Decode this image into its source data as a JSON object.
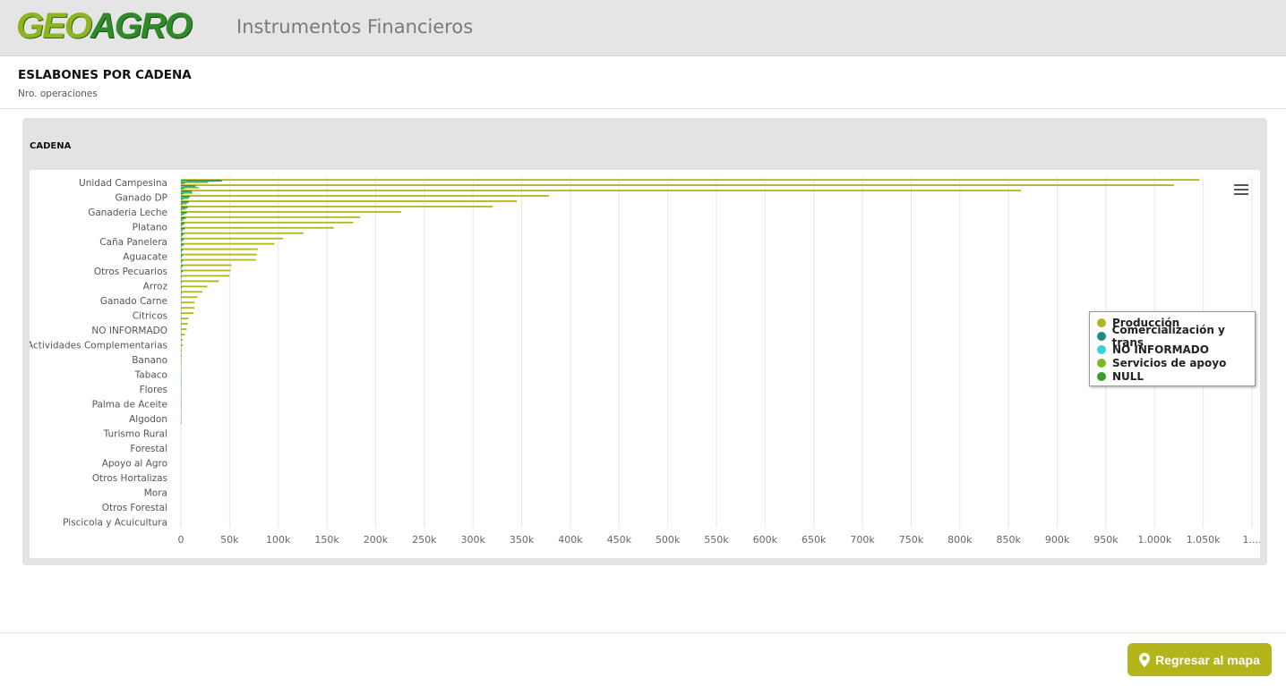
{
  "header": {
    "logo_geo": "GEO",
    "logo_agro": "AGRO",
    "title": "Instrumentos Financieros"
  },
  "page": {
    "heading": "ESLABONES POR CADENA",
    "subheading": "Nro. operaciones"
  },
  "card": {
    "title": "CADENA"
  },
  "footer": {
    "back_button_label": "Regresar al mapa",
    "back_button_icon": "map-pin-icon"
  },
  "chart_data": {
    "type": "bar",
    "orientation": "horizontal",
    "title": "",
    "xlabel": "",
    "ylabel": "",
    "xlim": [
      0,
      1100000
    ],
    "grid": true,
    "legend_position": "right",
    "x_ticks": [
      "0",
      "50k",
      "100k",
      "150k",
      "200k",
      "250k",
      "300k",
      "350k",
      "400k",
      "450k",
      "500k",
      "550k",
      "600k",
      "650k",
      "700k",
      "750k",
      "800k",
      "850k",
      "900k",
      "950k",
      "1.000k",
      "1.050k",
      "1...."
    ],
    "category_labels_shown": [
      "Unidad Campesina",
      "Ganado DP",
      "Ganaderia Leche",
      "Platano",
      "Caña Panelera",
      "Aguacate",
      "Otros Pecuarios",
      "Arroz",
      "Ganado Carne",
      "Citricos",
      "NO INFORMADO",
      "Actividades Complementarias",
      "Banano",
      "Tabaco",
      "Flores",
      "Palma de Aceite",
      "Algodon",
      "Turismo Rural",
      "Forestal",
      "Apoyo al Agro",
      "Otros Hortalizas",
      "Mora",
      "Otros Forestal",
      "Piscicola y Acuicultura"
    ],
    "series": [
      {
        "name": "Producción",
        "color": "#b1b61c",
        "values": [
          1046000,
          1020000,
          863000,
          378000,
          345000,
          320000,
          226000,
          184000,
          177000,
          157000,
          126000,
          105000,
          96000,
          79000,
          78000,
          77000,
          52000,
          51000,
          50000,
          39000,
          27000,
          22000,
          17000,
          14000,
          14000,
          13000,
          8000,
          7000,
          6000,
          4000,
          2000,
          2000,
          1000,
          1000,
          500,
          300,
          200,
          150,
          120,
          100,
          80,
          60,
          50,
          40,
          30,
          20
        ]
      },
      {
        "name": "Comercialización y trans",
        "color": "#1f8b7f",
        "values": [
          42000,
          15000,
          11000,
          9000,
          8000,
          7000,
          6000,
          5000,
          4000,
          4000,
          3000,
          3000,
          3000,
          2000,
          2000,
          2000,
          2000,
          2000,
          1000,
          1000,
          1000,
          1000,
          500,
          500,
          500,
          300,
          200,
          200,
          100,
          100,
          100,
          50,
          50,
          30,
          20,
          10,
          10,
          10,
          10,
          10,
          10,
          10,
          10,
          10,
          10,
          10
        ]
      },
      {
        "name": "NO INFORMADO",
        "color": "#34d2dd",
        "values": [
          6000,
          3000,
          2000,
          1500,
          1000,
          800,
          600,
          500,
          400,
          300,
          300,
          200,
          200,
          150,
          100,
          100,
          100,
          100,
          50,
          50,
          50,
          50,
          30,
          30,
          20,
          20,
          10,
          10,
          10,
          10,
          10,
          10,
          10,
          10,
          10,
          10,
          10,
          10,
          10,
          10,
          10,
          10,
          10,
          10,
          10,
          10
        ]
      },
      {
        "name": "Servicios de apoyo",
        "color": "#7fb820",
        "values": [
          28000,
          18000,
          12000,
          8000,
          6000,
          5000,
          4000,
          3000,
          2500,
          2000,
          1800,
          1500,
          1200,
          1000,
          900,
          800,
          700,
          600,
          500,
          400,
          300,
          250,
          200,
          150,
          100,
          80,
          60,
          50,
          40,
          30,
          20,
          20,
          10,
          10,
          10,
          10,
          10,
          10,
          10,
          10,
          10,
          10,
          10,
          10,
          10,
          10
        ]
      },
      {
        "name": "NULL",
        "color": "#3c9b2d",
        "values": [
          4000,
          3000,
          2500,
          2000,
          1500,
          1200,
          1000,
          900,
          800,
          700,
          600,
          500,
          400,
          300,
          250,
          200,
          150,
          120,
          100,
          80,
          60,
          50,
          40,
          30,
          20,
          10,
          10,
          10,
          10,
          10,
          10,
          10,
          10,
          10,
          10,
          10,
          10,
          10,
          10,
          10,
          10,
          10,
          10,
          10,
          10,
          10
        ]
      }
    ]
  }
}
